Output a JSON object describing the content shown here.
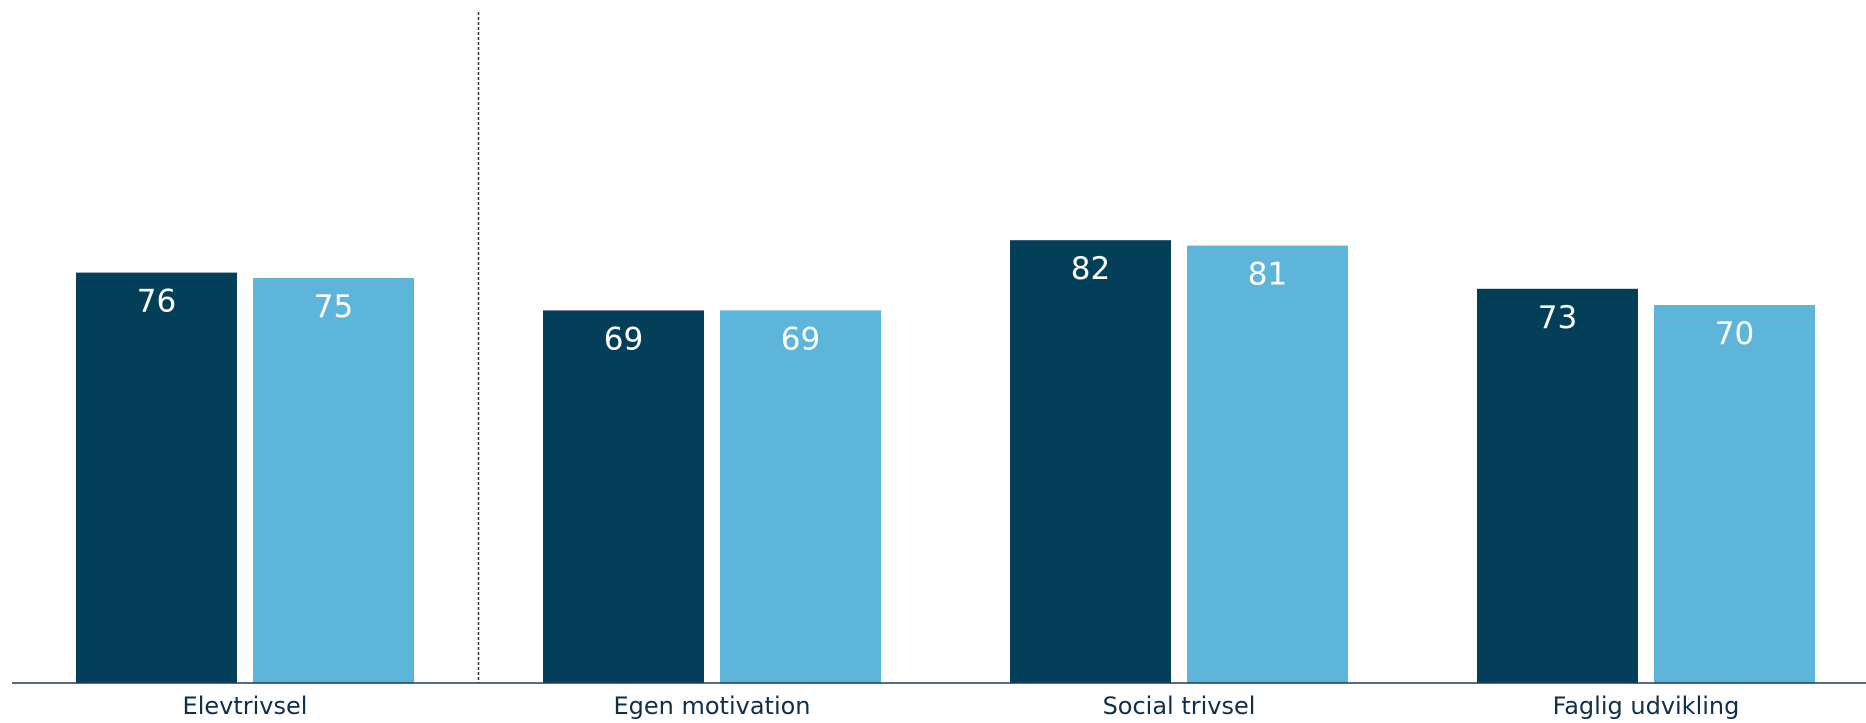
{
  "chart_data": {
    "type": "bar",
    "categories": [
      "Elevtrivsel",
      "Egen motivation",
      "Social trivsel",
      "Faglig udvikling"
    ],
    "series": [
      {
        "values": [
          76,
          69,
          82,
          73
        ],
        "color": "#043f59"
      },
      {
        "values": [
          75,
          69,
          81,
          70
        ],
        "color": "#5eb5da"
      }
    ],
    "title": "",
    "xlabel": "",
    "ylabel": "",
    "ylim": [
      0,
      100
    ],
    "grid": false,
    "data_labels": true,
    "separator_after_category": 0
  }
}
